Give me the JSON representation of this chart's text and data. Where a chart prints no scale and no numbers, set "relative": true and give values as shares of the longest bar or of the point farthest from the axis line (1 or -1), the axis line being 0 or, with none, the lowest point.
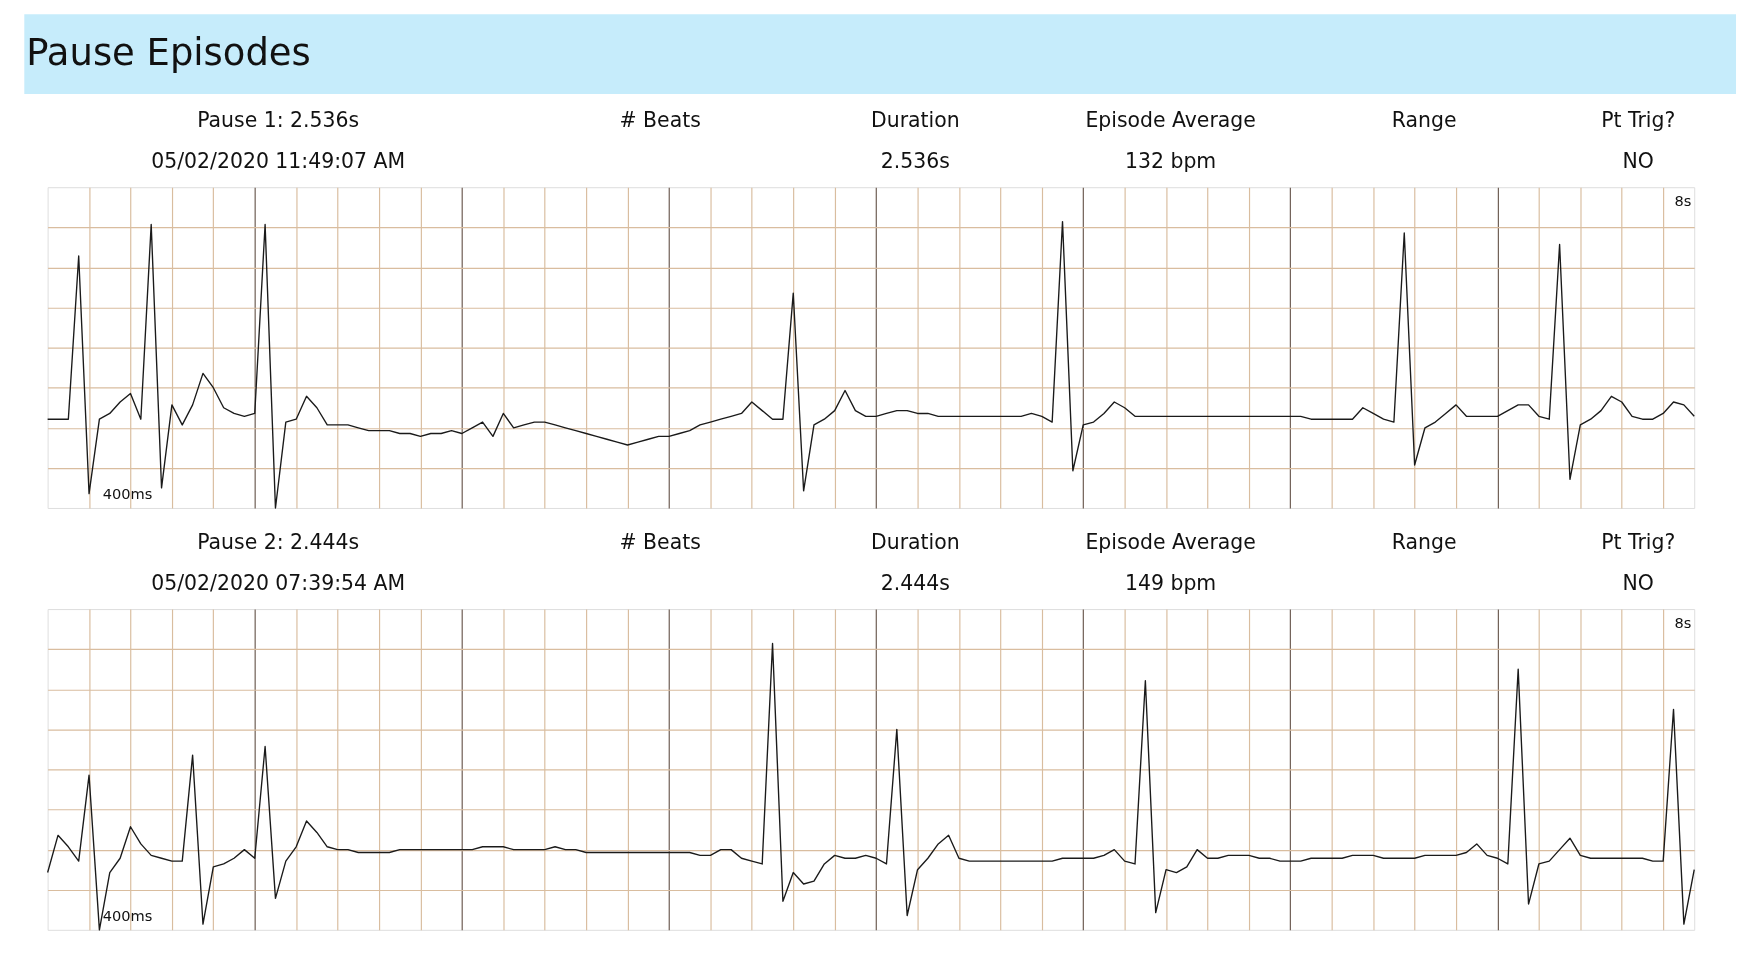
{
  "chart_data": [
    {
      "type": "line",
      "title": "Pause Episodes",
      "relative": true,
      "grid": true,
      "categories": [
        null,
        null,
        null,
        null,
        null,
        null,
        null,
        null,
        null,
        null,
        null,
        null,
        null,
        null,
        null,
        null,
        null,
        null,
        null,
        null,
        null,
        null,
        null,
        null,
        null,
        null,
        null,
        null,
        null,
        null,
        null,
        null,
        null,
        null,
        null,
        null,
        null,
        null,
        null,
        null,
        null,
        null,
        null,
        null,
        null,
        null,
        null,
        null,
        null,
        null,
        null,
        null,
        null,
        null,
        null,
        null,
        null,
        null,
        null,
        null,
        null,
        null,
        null,
        null,
        null,
        null,
        null,
        null,
        null,
        null,
        null,
        null,
        null,
        null,
        null,
        null,
        null,
        null,
        null,
        null,
        null,
        null,
        null,
        null,
        null,
        null,
        null,
        null,
        null,
        null,
        null,
        null,
        null,
        null,
        null,
        null,
        null,
        null,
        null,
        null,
        null,
        null,
        null,
        null,
        null,
        null,
        null,
        null,
        null,
        null,
        null,
        null,
        null,
        null,
        null,
        null,
        null,
        null,
        null,
        null,
        null,
        null,
        null,
        null,
        null,
        null,
        null,
        null,
        null,
        null,
        null,
        null,
        null,
        null,
        null,
        null,
        null,
        null,
        null,
        null,
        null,
        null,
        null,
        null,
        null,
        null,
        null,
        null,
        null,
        null,
        null,
        null,
        null,
        null,
        null,
        null,
        null,
        null,
        null,
        null
      ],
      "annotations": [
        "Pause 1: 2.536s",
        "# Beats",
        "Duration",
        "Episode Average",
        "Range",
        "Pt Trig?",
        "05/02/2020 11:49:07 AM",
        "2.536s",
        "132 bpm",
        "NO",
        "400ms",
        "8s"
      ],
      "series": [
        {
          "color": "#1a1a1a",
          "values": [
            0.31,
            0.31,
            0.31,
            0.88,
            0.05,
            0.31,
            0.33,
            0.37,
            0.4,
            0.31,
            0.99,
            0.07,
            0.36,
            0.29,
            0.36,
            0.47,
            0.42,
            0.35,
            0.33,
            0.32,
            0.33,
            0.99,
            0,
            0.3,
            0.31,
            0.39,
            0.35,
            0.29,
            0.29,
            0.29,
            0.28,
            0.27,
            0.27,
            0.27,
            0.26,
            0.26,
            0.25,
            0.26,
            0.26,
            0.27,
            0.26,
            0.28,
            0.3,
            0.25,
            0.33,
            0.28,
            0.29,
            0.3,
            0.3,
            0.29,
            0.28,
            0.27,
            0.26,
            0.25,
            0.24,
            0.23,
            0.22,
            0.23,
            0.24,
            0.25,
            0.25,
            0.26,
            0.27,
            0.29,
            0.3,
            0.31,
            0.32,
            0.33,
            0.37,
            0.34,
            0.31,
            0.31,
            0.75,
            0.06,
            0.29,
            0.31,
            0.34,
            0.41,
            0.34,
            0.32,
            0.32,
            0.33,
            0.34,
            0.34,
            0.33,
            0.33,
            0.32,
            0.32,
            0.32,
            0.32,
            0.32,
            0.32,
            0.32,
            0.32,
            0.32,
            0.33,
            0.32,
            0.3,
            1.0,
            0.13,
            0.29,
            0.3,
            0.33,
            0.37,
            0.35,
            0.32,
            0.32,
            0.32,
            0.32,
            0.32,
            0.32,
            0.32,
            0.32,
            0.32,
            0.32,
            0.32,
            0.32,
            0.32,
            0.32,
            0.32,
            0.32,
            0.32,
            0.31,
            0.31,
            0.31,
            0.31,
            0.31,
            0.35,
            0.33,
            0.31,
            0.3,
            0.96,
            0.15,
            0.28,
            0.3,
            0.33,
            0.36,
            0.32,
            0.32,
            0.32,
            0.32,
            0.34,
            0.36,
            0.36,
            0.32,
            0.31,
            0.92,
            0.1,
            0.29,
            0.31,
            0.34,
            0.39,
            0.37,
            0.32,
            0.31,
            0.31,
            0.33,
            0.37,
            0.36,
            0.32
          ]
        }
      ]
    },
    {
      "type": "line",
      "relative": true,
      "grid": true,
      "categories": [
        null,
        null,
        null,
        null,
        null,
        null,
        null,
        null,
        null,
        null,
        null,
        null,
        null,
        null,
        null,
        null,
        null,
        null,
        null,
        null,
        null,
        null,
        null,
        null,
        null,
        null,
        null,
        null,
        null,
        null,
        null,
        null,
        null,
        null,
        null,
        null,
        null,
        null,
        null,
        null,
        null,
        null,
        null,
        null,
        null,
        null,
        null,
        null,
        null,
        null,
        null,
        null,
        null,
        null,
        null,
        null,
        null,
        null,
        null,
        null,
        null,
        null,
        null,
        null,
        null,
        null,
        null,
        null,
        null,
        null,
        null,
        null,
        null,
        null,
        null,
        null,
        null,
        null,
        null,
        null,
        null,
        null,
        null,
        null,
        null,
        null,
        null,
        null,
        null,
        null,
        null,
        null,
        null,
        null,
        null,
        null,
        null,
        null,
        null,
        null,
        null,
        null,
        null,
        null,
        null,
        null,
        null,
        null,
        null,
        null,
        null,
        null,
        null,
        null,
        null,
        null,
        null,
        null,
        null,
        null,
        null,
        null,
        null,
        null,
        null,
        null,
        null,
        null,
        null,
        null,
        null,
        null,
        null,
        null,
        null,
        null,
        null,
        null,
        null,
        null,
        null,
        null,
        null,
        null,
        null,
        null,
        null,
        null,
        null,
        null,
        null,
        null,
        null,
        null,
        null,
        null,
        null,
        null,
        null,
        null
      ],
      "annotations": [
        "Pause 2: 2.444s",
        "# Beats",
        "Duration",
        "Episode Average",
        "Range",
        "Pt Trig?",
        "05/02/2020 07:39:54 AM",
        "2.444s",
        "149 bpm",
        "NO",
        "400ms",
        "8s"
      ],
      "series": [
        {
          "color": "#1a1a1a",
          "values": [
            0.2,
            0.33,
            0.29,
            0.24,
            0.54,
            0,
            0.2,
            0.25,
            0.36,
            0.3,
            0.26,
            0.25,
            0.24,
            0.24,
            0.61,
            0.02,
            0.22,
            0.23,
            0.25,
            0.28,
            0.25,
            0.64,
            0.11,
            0.24,
            0.29,
            0.38,
            0.34,
            0.29,
            0.28,
            0.28,
            0.27,
            0.27,
            0.27,
            0.27,
            0.28,
            0.28,
            0.28,
            0.28,
            0.28,
            0.28,
            0.28,
            0.28,
            0.29,
            0.29,
            0.29,
            0.28,
            0.28,
            0.28,
            0.28,
            0.29,
            0.28,
            0.28,
            0.27,
            0.27,
            0.27,
            0.27,
            0.27,
            0.27,
            0.27,
            0.27,
            0.27,
            0.27,
            0.27,
            0.26,
            0.26,
            0.28,
            0.28,
            0.25,
            0.24,
            0.23,
            1.0,
            0.1,
            0.2,
            0.16,
            0.17,
            0.23,
            0.26,
            0.25,
            0.25,
            0.26,
            0.25,
            0.23,
            0.7,
            0.05,
            0.21,
            0.25,
            0.3,
            0.33,
            0.25,
            0.24,
            0.24,
            0.24,
            0.24,
            0.24,
            0.24,
            0.24,
            0.24,
            0.24,
            0.25,
            0.25,
            0.25,
            0.25,
            0.26,
            0.28,
            0.24,
            0.23,
            0.87,
            0.06,
            0.21,
            0.2,
            0.22,
            0.28,
            0.25,
            0.25,
            0.26,
            0.26,
            0.26,
            0.25,
            0.25,
            0.24,
            0.24,
            0.24,
            0.25,
            0.25,
            0.25,
            0.25,
            0.26,
            0.26,
            0.26,
            0.25,
            0.25,
            0.25,
            0.25,
            0.26,
            0.26,
            0.26,
            0.26,
            0.27,
            0.3,
            0.26,
            0.25,
            0.23,
            0.91,
            0.09,
            0.23,
            0.24,
            0.28,
            0.32,
            0.26,
            0.25,
            0.25,
            0.25,
            0.25,
            0.25,
            0.25,
            0.24,
            0.24,
            0.77,
            0.02,
            0.21
          ]
        }
      ]
    }
  ]
}
